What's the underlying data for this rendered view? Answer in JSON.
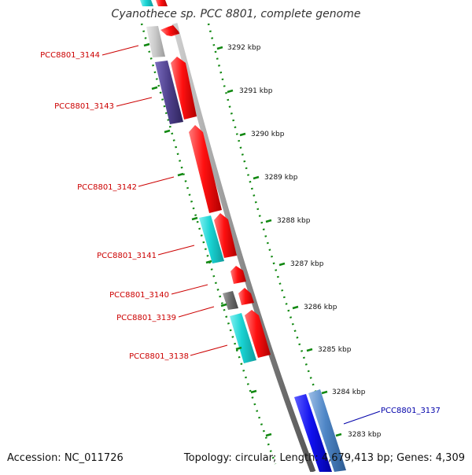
{
  "title": "Cyanothece sp. PCC 8801, complete genome",
  "accession": "Accession: NC_011726",
  "topology": "Topology: circular; Length: 4,679,413 bp; Genes: 4,309",
  "kbp_ticks": [
    "3292 kbp",
    "3291 kbp",
    "3290 kbp",
    "3289 kbp",
    "3288 kbp",
    "3287 kbp",
    "3286 kbp",
    "3285 kbp",
    "3284 kbp",
    "3283 kbp"
  ],
  "genes": [
    {
      "label": "PCC8801_3144",
      "color": "#cc0000"
    },
    {
      "label": "PCC8801_3143",
      "color": "#cc0000"
    },
    {
      "label": "PCC8801_3142",
      "color": "#cc0000"
    },
    {
      "label": "PCC8801_3141",
      "color": "#cc0000"
    },
    {
      "label": "PCC8801_3140",
      "color": "#cc0000"
    },
    {
      "label": "PCC8801_3139",
      "color": "#cc0000"
    },
    {
      "label": "PCC8801_3138",
      "color": "#cc0000"
    },
    {
      "label": "PCC8801_3137",
      "color": "#0000aa"
    }
  ],
  "colors": {
    "red_gene": "#ff1010",
    "cyan_feature": "#19d3d3",
    "blue_gene": "#1010ee",
    "steelblue_feature": "#4f86c6",
    "purple_feature": "#4d3f8a",
    "grey_feature": "#6b6b6b",
    "lightgrey_feature": "#c8c8c8",
    "backbone": "#8a8a8a",
    "tick_green": "#118811"
  }
}
